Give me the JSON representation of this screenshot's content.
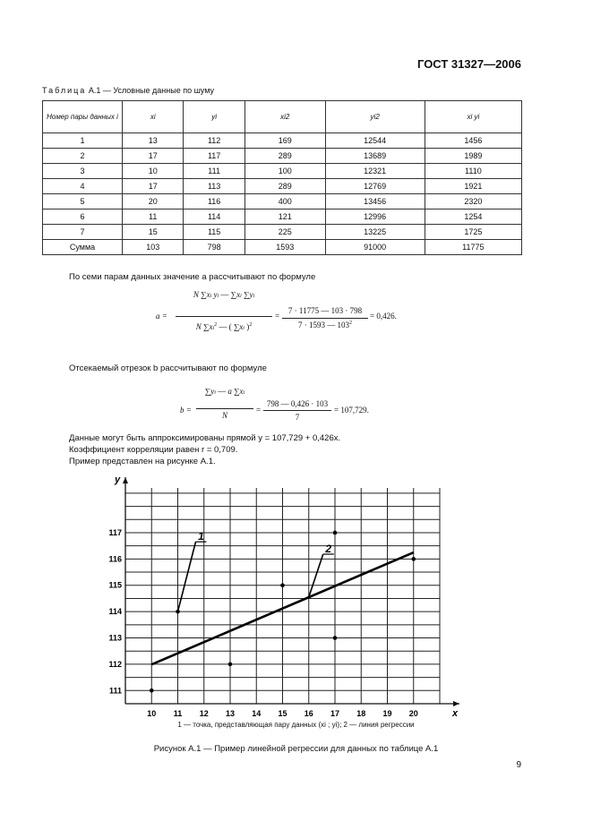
{
  "header": {
    "standard": "ГОСТ 31327—2006"
  },
  "table": {
    "caption_word": "Таблица",
    "caption_rest": "А.1 — Условные данные по шуму",
    "headers": [
      "Номер пары данных i",
      "xi",
      "yi",
      "xi2",
      "yi2",
      "xi yi"
    ],
    "rows": [
      [
        "1",
        "13",
        "112",
        "169",
        "12544",
        "1456"
      ],
      [
        "2",
        "17",
        "117",
        "289",
        "13689",
        "1989"
      ],
      [
        "3",
        "10",
        "111",
        "100",
        "12321",
        "1110"
      ],
      [
        "4",
        "17",
        "113",
        "289",
        "12769",
        "1921"
      ],
      [
        "5",
        "20",
        "116",
        "400",
        "13456",
        "2320"
      ],
      [
        "6",
        "11",
        "114",
        "121",
        "12996",
        "1254"
      ],
      [
        "7",
        "15",
        "115",
        "225",
        "13225",
        "1725"
      ],
      [
        "Сумма",
        "103",
        "798",
        "1593",
        "91000",
        "11775"
      ]
    ]
  },
  "text": {
    "p_a": "По семи парам данных значение a рассчитывают по формуле",
    "p_b": "Отсекаемый отрезок b рассчитывают по формуле",
    "p_approx": "Данные могут быть аппроксимированы прямой y = 107,729 + 0,426x.",
    "p_corr": "Коэффициент корреляции равен r = 0,709.",
    "p_example": "Пример представлен на рисунке А.1."
  },
  "formula_a": {
    "num": "7 · 11775 — 103 · 798",
    "den": "7 · 1593 — 103",
    "result": "= 0,426."
  },
  "formula_b": {
    "num": "798 — 0,426 · 103",
    "den": "7",
    "result": "= 107,729."
  },
  "chart_data": {
    "type": "scatter",
    "x": [
      13,
      17,
      10,
      17,
      20,
      11,
      15
    ],
    "y": [
      112,
      117,
      111,
      113,
      116,
      114,
      115
    ],
    "regression_line": {
      "intercept": 107.729,
      "slope": 0.426,
      "x_range": [
        10,
        20
      ]
    },
    "xlabel": "x",
    "ylabel": "y",
    "xticks": [
      "10",
      "11",
      "12",
      "13",
      "14",
      "15",
      "16",
      "17",
      "18",
      "19",
      "20"
    ],
    "yticks": [
      "111",
      "112",
      "113",
      "114",
      "115",
      "116",
      "117"
    ],
    "xlim": [
      9,
      21
    ],
    "ylim": [
      110.5,
      118.7
    ],
    "grid": true,
    "annotations": [
      {
        "text": "1",
        "points_to": [
          11,
          114
        ]
      },
      {
        "text": "2",
        "points_to": [
          16,
          114.55
        ]
      }
    ]
  },
  "legend": {
    "text": "1 — точка, представляющая пару данных (xi ; yi); 2 — линия регрессии"
  },
  "figure_caption": "Рисунок А.1 — Пример линейной регрессии для данных по таблице А.1",
  "page_number": "9"
}
